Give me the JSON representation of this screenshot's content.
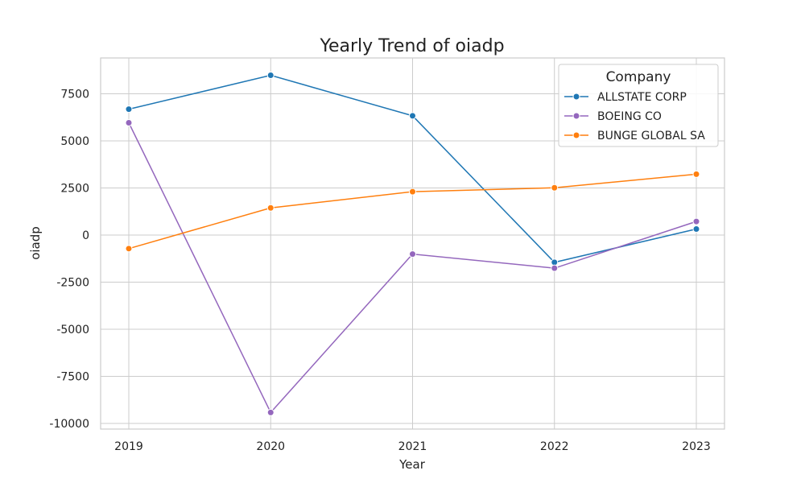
{
  "chart_data": {
    "type": "line",
    "title": "Yearly Trend of oiadp",
    "xlabel": "Year",
    "ylabel": "oiadp",
    "x": [
      "2019",
      "2020",
      "2021",
      "2022",
      "2023"
    ],
    "yticks": [
      "-10000",
      "-7500",
      "-5000",
      "-2500",
      "0",
      "2500",
      "5000",
      "7500"
    ],
    "ylim": [
      -10300,
      9400
    ],
    "grid": true,
    "legend": {
      "title": "Company",
      "placement": "top-right"
    },
    "series": [
      {
        "name": "ALLSTATE CORP",
        "color": "#1f77b4",
        "values": [
          6680,
          8480,
          6330,
          -1450,
          320
        ]
      },
      {
        "name": "BOEING CO",
        "color": "#9467bd",
        "values": [
          5960,
          -9420,
          -1010,
          -1760,
          720
        ]
      },
      {
        "name": "BUNGE GLOBAL SA",
        "color": "#ff7f0e",
        "values": [
          -720,
          1440,
          2300,
          2510,
          3230
        ]
      }
    ]
  }
}
